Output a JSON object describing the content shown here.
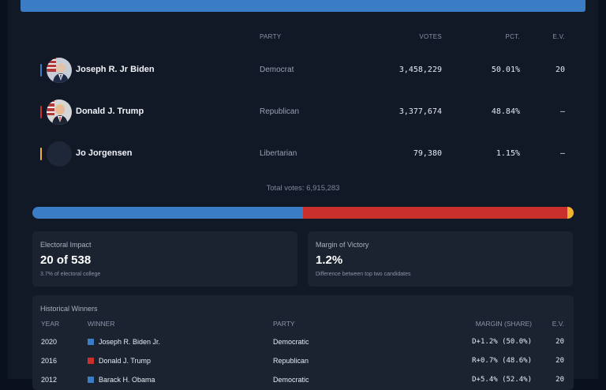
{
  "columns": {
    "party": "PARTY",
    "votes": "VOTES",
    "pct": "PCT.",
    "ev": "E.V."
  },
  "candidates": [
    {
      "name": "Joseph R. Jr Biden",
      "party": "Democrat",
      "votes": "3,458,229",
      "pct": "50.01%",
      "ev": "20",
      "color": "#3b7dc4",
      "avatar": "biden-avatar"
    },
    {
      "name": "Donald J. Trump",
      "party": "Republican",
      "votes": "3,377,674",
      "pct": "48.84%",
      "ev": "—",
      "color": "#c9302c",
      "avatar": "trump-avatar"
    },
    {
      "name": "Jo Jorgensen",
      "party": "Libertarian",
      "votes": "79,380",
      "pct": "1.15%",
      "ev": "—",
      "color": "#f2b233",
      "avatar": "empty-avatar"
    }
  ],
  "total_votes": "Total votes: 6,915,283",
  "vote_share": [
    {
      "party": "Democrat",
      "share": 0.5001,
      "color": "#3b7dc4"
    },
    {
      "party": "Republican",
      "share": 0.4884,
      "color": "#c9302c"
    },
    {
      "party": "Libertarian",
      "share": 0.0115,
      "color": "#f2b233"
    }
  ],
  "cards": {
    "electoral": {
      "label": "Electoral Impact",
      "value": "20 of 538",
      "sub": "3.7% of electoral college"
    },
    "margin": {
      "label": "Margin of Victory",
      "value": "1.2%",
      "sub": "Difference between top two candidates"
    }
  },
  "history": {
    "title": "Historical Winners",
    "headers": {
      "year": "YEAR",
      "winner": "WINNER",
      "party": "PARTY",
      "margin": "MARGIN (SHARE)",
      "ev": "E.V."
    },
    "rows": [
      {
        "year": "2020",
        "winner": "Joseph R. Biden Jr.",
        "party": "Democratic",
        "margin": "D+1.2% (50.0%)",
        "ev": "20",
        "color": "#3b7dc4"
      },
      {
        "year": "2016",
        "winner": "Donald J. Trump",
        "party": "Republican",
        "margin": "R+0.7% (48.6%)",
        "ev": "20",
        "color": "#c9302c"
      },
      {
        "year": "2012",
        "winner": "Barack H. Obama",
        "party": "Democratic",
        "margin": "D+5.4% (52.4%)",
        "ev": "20",
        "color": "#3b7dc4"
      }
    ]
  }
}
